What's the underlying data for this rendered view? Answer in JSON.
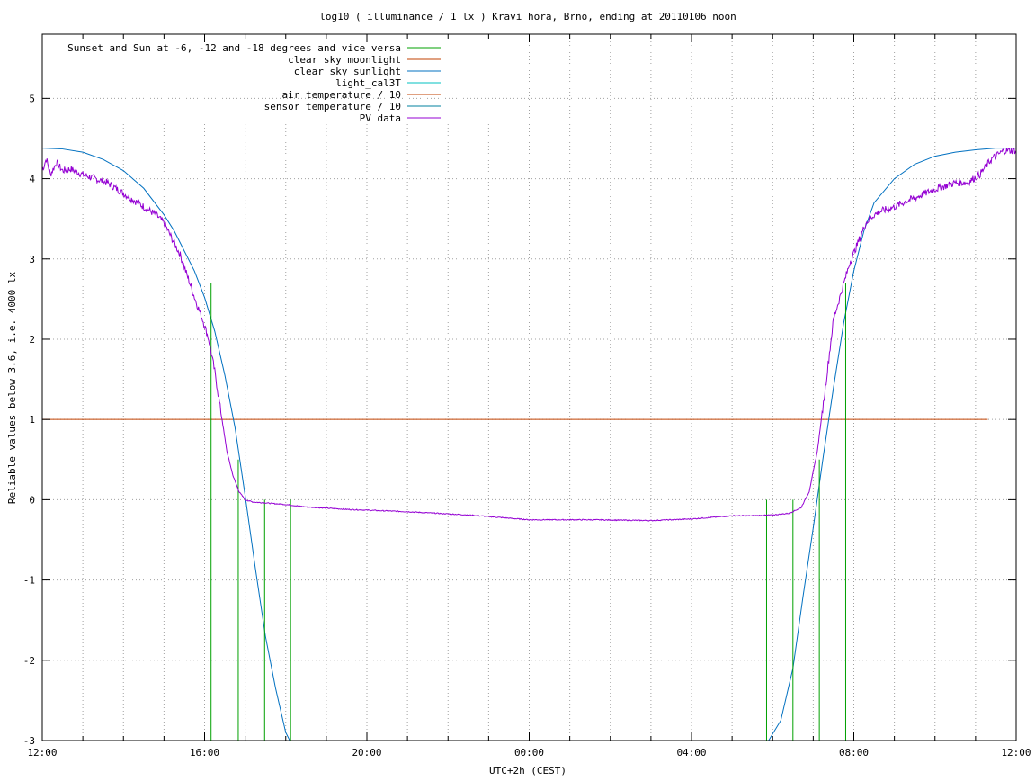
{
  "chart_data": {
    "type": "line",
    "title": "log10 ( illuminance / 1 lx ) Kravi hora, Brno, ending at 20110106 noon",
    "xlabel": "UTC+2h (CEST)",
    "ylabel": "Reliable values below 3.6, i.e. 4000 lx",
    "x_unit": "hours since 12:00 on the chart start day",
    "xlim": [
      0,
      24
    ],
    "ylim": [
      -3,
      5.8
    ],
    "x_ticks": [
      {
        "x": 0,
        "label": "12:00"
      },
      {
        "x": 4,
        "label": "16:00"
      },
      {
        "x": 8,
        "label": "20:00"
      },
      {
        "x": 12,
        "label": "00:00"
      },
      {
        "x": 16,
        "label": "04:00"
      },
      {
        "x": 20,
        "label": "08:00"
      },
      {
        "x": 24,
        "label": "12:00"
      }
    ],
    "x_minor_step": 1,
    "y_ticks": [
      {
        "y": -3,
        "label": "-3"
      },
      {
        "y": -2,
        "label": "-2"
      },
      {
        "y": -1,
        "label": "-1"
      },
      {
        "y": 0,
        "label": "0"
      },
      {
        "y": 1,
        "label": "1"
      },
      {
        "y": 2,
        "label": "2"
      },
      {
        "y": 3,
        "label": "3"
      },
      {
        "y": 4,
        "label": "4"
      },
      {
        "y": 5,
        "label": "5"
      }
    ],
    "grid": true,
    "legend_position": "top-left",
    "legend": [
      {
        "label": "Sunset and Sun at -6, -12 and -18 degrees and vice versa",
        "color": "#00a000"
      },
      {
        "label": "clear sky moonlight",
        "color": "#c04000"
      },
      {
        "label": "clear sky sunlight",
        "color": "#0070c0"
      },
      {
        "label": "light_cal3T",
        "color": "#00c0c0"
      },
      {
        "label": "air temperature / 10",
        "color": "#c04000"
      },
      {
        "label": "sensor temperature / 10",
        "color": "#00809f"
      },
      {
        "label": "PV data",
        "color": "#9400d3"
      }
    ],
    "sun_markers": {
      "color": "#00a000",
      "lines": [
        {
          "x": 4.16,
          "y_top": 2.7
        },
        {
          "x": 4.83,
          "y_top": 0.5
        },
        {
          "x": 5.48,
          "y_top": 0.0
        },
        {
          "x": 6.12,
          "y_top": 0.0
        },
        {
          "x": 17.85,
          "y_top": 0.0
        },
        {
          "x": 18.5,
          "y_top": 0.0
        },
        {
          "x": 19.15,
          "y_top": 0.5
        },
        {
          "x": 19.8,
          "y_top": 2.7
        }
      ],
      "y_bottom": -3
    },
    "moonlight": {
      "color": "#c04000",
      "x": [
        0,
        23.3
      ],
      "y": [
        1.0,
        1.0
      ]
    },
    "sunlight": {
      "color": "#0070c0",
      "x": [
        0,
        0.5,
        1,
        1.5,
        2,
        2.5,
        3,
        3.25,
        3.5,
        3.75,
        4,
        4.25,
        4.5,
        4.75,
        5,
        5.25,
        5.5,
        5.75,
        6,
        6.1,
        17.9,
        18.2,
        18.5,
        18.75,
        19,
        19.25,
        19.5,
        19.75,
        20,
        20.25,
        20.5,
        21,
        21.5,
        22,
        22.5,
        23,
        23.5,
        24
      ],
      "y": [
        4.38,
        4.37,
        4.33,
        4.24,
        4.1,
        3.88,
        3.55,
        3.35,
        3.1,
        2.85,
        2.52,
        2.1,
        1.55,
        0.9,
        0.05,
        -0.85,
        -1.7,
        -2.35,
        -2.9,
        -3.0,
        -3.0,
        -2.75,
        -2.1,
        -1.2,
        -0.35,
        0.55,
        1.4,
        2.2,
        2.85,
        3.35,
        3.7,
        4.0,
        4.18,
        4.28,
        4.33,
        4.36,
        4.38,
        4.38
      ]
    },
    "pv_data": {
      "color": "#9400d3",
      "x": [
        0,
        0.1,
        0.2,
        0.35,
        0.5,
        0.7,
        1,
        1.3,
        1.6,
        1.9,
        2.2,
        2.5,
        2.8,
        3,
        3.2,
        3.4,
        3.6,
        3.8,
        3.95,
        4.1,
        4.25,
        4.4,
        4.55,
        4.7,
        4.85,
        5.0,
        5.2,
        5.5,
        6.0,
        6.5,
        7.5,
        9,
        10.5,
        12,
        13.5,
        15,
        16,
        17,
        17.5,
        18,
        18.4,
        18.7,
        18.9,
        19.1,
        19.3,
        19.5,
        19.7,
        19.9,
        20.1,
        20.3,
        20.5,
        20.7,
        21,
        21.3,
        21.6,
        21.9,
        22.2,
        22.5,
        22.8,
        23.1,
        23.4,
        23.7,
        24
      ],
      "y": [
        4.1,
        4.25,
        4.05,
        4.2,
        4.1,
        4.12,
        4.05,
        4.0,
        3.95,
        3.85,
        3.75,
        3.65,
        3.55,
        3.45,
        3.25,
        3.05,
        2.75,
        2.45,
        2.25,
        2.0,
        1.6,
        1.1,
        0.6,
        0.3,
        0.1,
        0.0,
        -0.03,
        -0.04,
        -0.06,
        -0.09,
        -0.12,
        -0.15,
        -0.19,
        -0.25,
        -0.25,
        -0.26,
        -0.24,
        -0.2,
        -0.2,
        -0.19,
        -0.17,
        -0.1,
        0.1,
        0.6,
        1.4,
        2.25,
        2.6,
        2.95,
        3.2,
        3.45,
        3.55,
        3.6,
        3.65,
        3.72,
        3.78,
        3.85,
        3.9,
        3.95,
        3.95,
        4.05,
        4.25,
        4.35,
        4.35
      ]
    }
  }
}
